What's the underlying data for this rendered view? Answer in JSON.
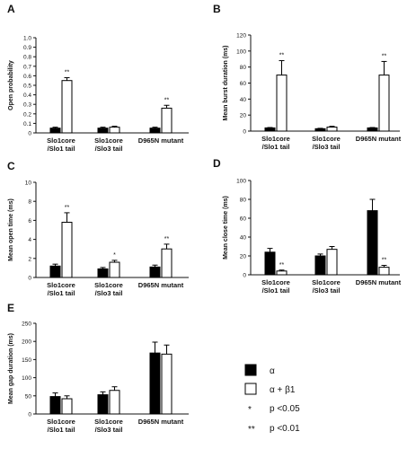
{
  "legend": {
    "items": [
      {
        "key": "alpha",
        "label": "α",
        "swatch": "filled"
      },
      {
        "key": "alpha_beta1",
        "label": "α + β1",
        "swatch": "open"
      }
    ],
    "significance": [
      {
        "symbol": "*",
        "label": "p <0.05"
      },
      {
        "symbol": "**",
        "label": "p <0.01"
      }
    ]
  },
  "chart_data": [
    {
      "panel": "A",
      "type": "bar",
      "ylabel": "Open probability",
      "ylim": [
        0,
        1.0
      ],
      "yticks": [
        "0",
        "0.1",
        "0.2",
        "0.3",
        "0.4",
        "0.5",
        "0.6",
        "0.7",
        "0.8",
        "0.9",
        "1.0"
      ],
      "categories": [
        [
          "Slo1core",
          "/Slo1 tail"
        ],
        [
          "Slo1core",
          "/Slo3 tail"
        ],
        [
          "D965N mutant"
        ]
      ],
      "series": [
        {
          "key": "alpha",
          "values": [
            0.05,
            0.05,
            0.05
          ],
          "errors": [
            0.01,
            0.01,
            0.01
          ]
        },
        {
          "key": "alpha_beta1",
          "values": [
            0.55,
            0.06,
            0.26
          ],
          "errors": [
            0.03,
            0.01,
            0.03
          ],
          "sig": [
            "**",
            "",
            "**"
          ]
        }
      ]
    },
    {
      "panel": "B",
      "type": "bar",
      "ylabel": "Mean burst duration (ms)",
      "ylim": [
        0,
        120
      ],
      "yticks": [
        "0",
        "20",
        "40",
        "60",
        "80",
        "100",
        "120"
      ],
      "categories": [
        [
          "Slo1core",
          "/Slo1 tail"
        ],
        [
          "Slo1core",
          "/Slo3 tail"
        ],
        [
          "D965N mutant"
        ]
      ],
      "series": [
        {
          "key": "alpha",
          "values": [
            4,
            3,
            4
          ],
          "errors": [
            0.5,
            0.5,
            0.5
          ]
        },
        {
          "key": "alpha_beta1",
          "values": [
            70,
            5,
            70
          ],
          "errors": [
            18,
            1,
            17
          ],
          "sig": [
            "**",
            "",
            "**"
          ]
        }
      ]
    },
    {
      "panel": "C",
      "type": "bar",
      "ylabel": "Mean open time (ms)",
      "ylim": [
        0,
        10
      ],
      "yticks": [
        "0",
        "2",
        "4",
        "6",
        "8",
        "10"
      ],
      "categories": [
        [
          "Slo1core",
          "/Slo1 tail"
        ],
        [
          "Slo1core",
          "/Slo3 tail"
        ],
        [
          "D965N mutant"
        ]
      ],
      "series": [
        {
          "key": "alpha",
          "values": [
            1.2,
            0.9,
            1.1
          ],
          "errors": [
            0.2,
            0.15,
            0.2
          ]
        },
        {
          "key": "alpha_beta1",
          "values": [
            5.8,
            1.6,
            3.0
          ],
          "errors": [
            1.0,
            0.2,
            0.5
          ],
          "sig": [
            "**",
            "*",
            "**"
          ]
        }
      ]
    },
    {
      "panel": "D",
      "type": "bar",
      "ylabel": "Mean close time (ms)",
      "ylim": [
        0,
        100
      ],
      "yticks": [
        "0",
        "20",
        "40",
        "60",
        "80",
        "100"
      ],
      "categories": [
        [
          "Slo1core",
          "/Slo1 tail"
        ],
        [
          "Slo1core",
          "/Slo3 tail"
        ],
        [
          "D965N mutant"
        ]
      ],
      "series": [
        {
          "key": "alpha",
          "values": [
            24,
            20,
            68
          ],
          "errors": [
            4,
            2,
            12
          ]
        },
        {
          "key": "alpha_beta1",
          "values": [
            4,
            27,
            8
          ],
          "errors": [
            1,
            3,
            2
          ],
          "sig": [
            "**",
            "",
            "**"
          ]
        }
      ]
    },
    {
      "panel": "E",
      "type": "bar",
      "ylabel": "Mean gap duration (ms)",
      "ylim": [
        0,
        250
      ],
      "yticks": [
        "0",
        "50",
        "100",
        "150",
        "200",
        "250"
      ],
      "categories": [
        [
          "Slo1core",
          "/Slo1 tail"
        ],
        [
          "Slo1core",
          "/Slo3 tail"
        ],
        [
          "D965N mutant"
        ]
      ],
      "series": [
        {
          "key": "alpha",
          "values": [
            48,
            53,
            168
          ],
          "errors": [
            10,
            8,
            30
          ]
        },
        {
          "key": "alpha_beta1",
          "values": [
            42,
            65,
            165
          ],
          "errors": [
            8,
            10,
            25
          ],
          "sig": [
            "",
            "",
            ""
          ]
        }
      ]
    }
  ]
}
